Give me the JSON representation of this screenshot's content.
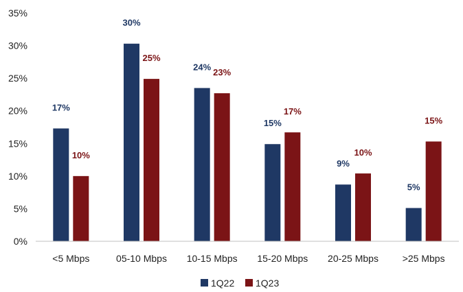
{
  "chart_data": {
    "type": "bar",
    "title": "",
    "xlabel": "",
    "ylabel": "",
    "categories": [
      "<5 Mbps",
      "05-10 Mbps",
      "10-15 Mbps",
      "15-20 Mbps",
      "20-25 Mbps",
      ">25 Mbps"
    ],
    "series": [
      {
        "name": "1Q22",
        "color": "#1f3864",
        "values": [
          17.3,
          30.3,
          23.5,
          14.9,
          8.7,
          5.1
        ],
        "labels": [
          "17%",
          "30%",
          "24%",
          "15%",
          "9%",
          "5%"
        ]
      },
      {
        "name": "1Q23",
        "color": "#7b1416",
        "values": [
          10.0,
          24.9,
          22.7,
          16.7,
          10.4,
          15.3
        ],
        "labels": [
          "10%",
          "25%",
          "23%",
          "17%",
          "10%",
          "15%"
        ]
      }
    ],
    "ylim": [
      0,
      35
    ],
    "yticks": [
      "0%",
      "5%",
      "10%",
      "15%",
      "20%",
      "25%",
      "30%",
      "35%"
    ],
    "grid": false,
    "legend": "bottom-center"
  }
}
